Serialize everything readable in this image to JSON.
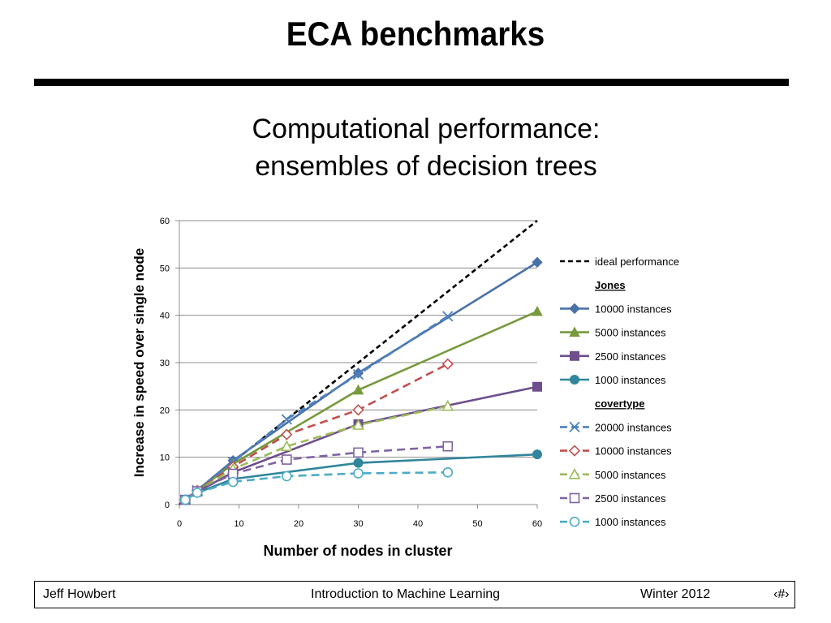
{
  "slide": {
    "title": "ECA benchmarks",
    "subtitle_line1": "Computational performance:",
    "subtitle_line2": "ensembles of decision trees"
  },
  "footer": {
    "author": "Jeff Howbert",
    "course": "Introduction to Machine Learning",
    "term": "Winter 2012",
    "page": "‹#›"
  },
  "chart_data": {
    "type": "line",
    "title": "",
    "xlabel": "Number of nodes in cluster",
    "ylabel": "Increase in speed over single node",
    "xlim": [
      0,
      60
    ],
    "ylim": [
      0,
      60
    ],
    "xticks": [
      0,
      10,
      20,
      30,
      40,
      50,
      60
    ],
    "yticks": [
      0,
      10,
      20,
      30,
      40,
      50,
      60
    ],
    "grid": "horizontal",
    "legend_position": "right",
    "series": [
      {
        "name": "ideal performance",
        "group": "",
        "color": "#000000",
        "dash": true,
        "marker": "none",
        "x": [
          0,
          60
        ],
        "y": [
          0,
          60
        ]
      },
      {
        "name": "10000 instances",
        "group": "Jones",
        "color": "#4A72A8",
        "dash": false,
        "marker": "diamond",
        "x": [
          1,
          3,
          9,
          30,
          60
        ],
        "y": [
          1,
          3,
          9.3,
          27.8,
          51.2
        ]
      },
      {
        "name": "5000 instances",
        "group": "Jones",
        "color": "#779A3E",
        "dash": false,
        "marker": "triangle",
        "x": [
          1,
          3,
          9,
          30,
          60
        ],
        "y": [
          1,
          2.9,
          8.6,
          24.2,
          40.8
        ]
      },
      {
        "name": "2500 instances",
        "group": "Jones",
        "color": "#6E4E8C",
        "dash": false,
        "marker": "square",
        "x": [
          1,
          3,
          9,
          30,
          60
        ],
        "y": [
          1,
          2.7,
          6.8,
          17,
          24.9
        ]
      },
      {
        "name": "1000 instances",
        "group": "Jones",
        "color": "#31869B",
        "dash": false,
        "marker": "circle",
        "x": [
          1,
          3,
          9,
          30,
          60
        ],
        "y": [
          1,
          2.5,
          5.4,
          8.8,
          10.6
        ]
      },
      {
        "name": "20000 instances",
        "group": "covertype",
        "color": "#4F81BD",
        "dash": true,
        "marker": "x",
        "x": [
          1,
          3,
          9,
          18,
          30,
          45
        ],
        "y": [
          1,
          3,
          9,
          18,
          27.5,
          39.8
        ]
      },
      {
        "name": "10000 instances",
        "group": "covertype",
        "color": "#C0504D",
        "dash": true,
        "marker": "diamond-open",
        "x": [
          1,
          3,
          9,
          18,
          30,
          45
        ],
        "y": [
          1,
          3,
          8,
          14.8,
          20,
          29.7
        ]
      },
      {
        "name": "5000 instances",
        "group": "covertype",
        "color": "#9BBB59",
        "dash": true,
        "marker": "triangle-open",
        "x": [
          1,
          3,
          9,
          18,
          30,
          45
        ],
        "y": [
          1,
          2.9,
          7.5,
          12.3,
          16.8,
          20.8
        ]
      },
      {
        "name": "2500 instances",
        "group": "covertype",
        "color": "#8064A2",
        "dash": true,
        "marker": "square-open",
        "x": [
          1,
          3,
          9,
          18,
          30,
          45
        ],
        "y": [
          1,
          2.8,
          6.5,
          9.5,
          11,
          12.3
        ]
      },
      {
        "name": "1000 instances",
        "group": "covertype",
        "color": "#4BACC6",
        "dash": true,
        "marker": "circle-open",
        "x": [
          1,
          3,
          9,
          18,
          30,
          45
        ],
        "y": [
          1,
          2.5,
          4.8,
          6,
          6.6,
          6.8
        ]
      }
    ]
  }
}
